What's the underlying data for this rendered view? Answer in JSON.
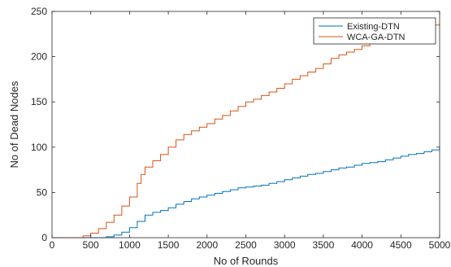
{
  "chart_data": {
    "type": "line",
    "xlabel": "No of Rounds",
    "ylabel": "No of Dead Nodes",
    "xlim": [
      0,
      5000
    ],
    "ylim": [
      0,
      250
    ],
    "xticks": [
      0,
      500,
      1000,
      1500,
      2000,
      2500,
      3000,
      3500,
      4000,
      4500,
      5000
    ],
    "yticks": [
      0,
      50,
      100,
      150,
      200,
      250
    ],
    "grid": false,
    "legend_position": "top-right",
    "series": [
      {
        "name": "Existing-DTN",
        "color": "#0072BD",
        "x": [
          0,
          600,
          700,
          800,
          900,
          1000,
          1100,
          1200,
          1300,
          1400,
          1500,
          1600,
          1700,
          1800,
          1900,
          2000,
          2100,
          2200,
          2300,
          2400,
          2500,
          2600,
          2700,
          2800,
          2900,
          3000,
          3100,
          3200,
          3300,
          3400,
          3500,
          3600,
          3700,
          3800,
          3900,
          4000,
          4100,
          4200,
          4300,
          4400,
          4500,
          4600,
          4700,
          4800,
          4900,
          5000
        ],
        "y": [
          0,
          0,
          1,
          3,
          6,
          11,
          18,
          25,
          28,
          30,
          33,
          37,
          40,
          43,
          45,
          47,
          49,
          51,
          53,
          55,
          56,
          57,
          58,
          60,
          62,
          64,
          66,
          68,
          70,
          71,
          73,
          75,
          77,
          78,
          80,
          82,
          83,
          84,
          86,
          88,
          90,
          92,
          93,
          95,
          97,
          100
        ]
      },
      {
        "name": "WCA-GA-DTN",
        "color": "#D95319",
        "x": [
          0,
          300,
          400,
          500,
          600,
          700,
          800,
          900,
          1000,
          1100,
          1150,
          1200,
          1300,
          1400,
          1500,
          1600,
          1700,
          1800,
          1900,
          2000,
          2100,
          2200,
          2300,
          2400,
          2500,
          2600,
          2700,
          2800,
          2900,
          3000,
          3100,
          3200,
          3300,
          3400,
          3500,
          3600,
          3700,
          3800,
          3900,
          4000,
          4100,
          4200,
          4300,
          4400,
          4500,
          4600,
          4700,
          4800,
          4900,
          5000
        ],
        "y": [
          0,
          0,
          2,
          5,
          10,
          17,
          25,
          35,
          45,
          60,
          70,
          78,
          85,
          92,
          100,
          108,
          114,
          118,
          122,
          126,
          131,
          135,
          140,
          145,
          150,
          153,
          157,
          161,
          165,
          170,
          175,
          179,
          183,
          187,
          192,
          198,
          202,
          205,
          208,
          212,
          215,
          217,
          220,
          223,
          226,
          229,
          231,
          233,
          235,
          237
        ]
      }
    ]
  }
}
